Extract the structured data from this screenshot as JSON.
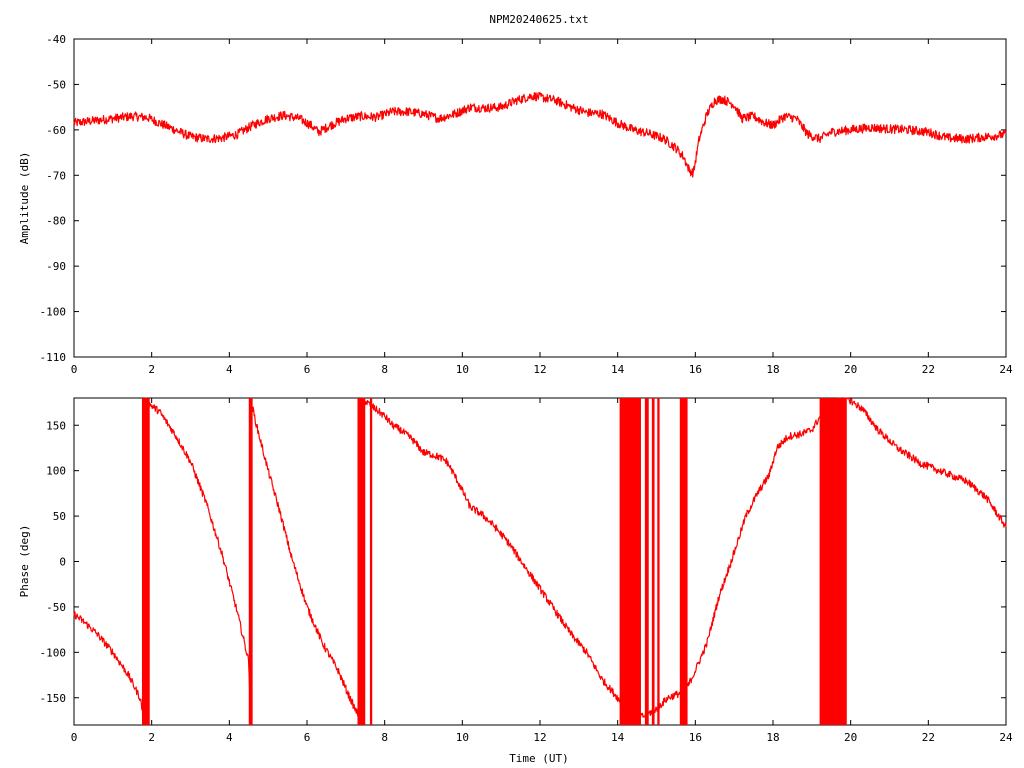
{
  "chart_data": [
    {
      "type": "line",
      "title": "NPM20240625.txt",
      "xlabel": "",
      "ylabel": "Amplitude (dB)",
      "xlim": [
        0,
        24
      ],
      "ylim": [
        -110,
        -40
      ],
      "xticks": [
        "0",
        "2",
        "4",
        "6",
        "8",
        "10",
        "12",
        "14",
        "16",
        "18",
        "20",
        "22",
        "24"
      ],
      "yticks": [
        "-40",
        "-50",
        "-60",
        "-70",
        "-80",
        "-90",
        "-100",
        "-110"
      ],
      "color": "#ff0000",
      "noise_dB": 1.0,
      "series": [
        {
          "x": [
            0,
            0.5,
            1,
            1.5,
            1.9,
            2.2,
            2.6,
            3,
            3.4,
            3.8,
            4.2,
            4.6,
            5,
            5.4,
            5.8,
            6.1,
            6.3,
            6.6,
            7,
            7.4,
            7.8,
            8.2,
            8.6,
            9,
            9.4,
            9.8,
            10.2,
            10.6,
            11,
            11.4,
            11.8,
            12,
            12.4,
            12.8,
            13.2,
            13.6,
            14,
            14.4,
            14.8,
            15.2,
            15.5,
            15.7,
            15.85,
            15.95,
            16.1,
            16.3,
            16.5,
            16.7,
            17,
            17.2,
            17.5,
            17.8,
            18,
            18.3,
            18.6,
            18.9,
            19.2,
            19.5,
            20,
            20.5,
            21,
            21.5,
            22,
            22.5,
            23,
            23.5,
            24
          ],
          "y": [
            -58.5,
            -58,
            -57.5,
            -57,
            -57.3,
            -58.5,
            -60,
            -61.5,
            -62,
            -61.8,
            -61,
            -59,
            -57.5,
            -56.8,
            -57.5,
            -59,
            -60.5,
            -59,
            -57.5,
            -57,
            -57.2,
            -56,
            -56,
            -56.5,
            -57.5,
            -56.5,
            -55,
            -55.2,
            -55,
            -53.5,
            -52.5,
            -52.8,
            -53.5,
            -55,
            -56.2,
            -56.5,
            -58.5,
            -60,
            -60.8,
            -62,
            -64,
            -66,
            -69,
            -69.5,
            -62,
            -56.5,
            -53.5,
            -53.2,
            -54.5,
            -57.5,
            -57,
            -58.5,
            -59,
            -57,
            -57.5,
            -61,
            -62,
            -60.5,
            -60,
            -59.5,
            -59.8,
            -60,
            -60.5,
            -61.8,
            -62,
            -61.5,
            -61
          ]
        }
      ]
    },
    {
      "type": "line",
      "title": "",
      "xlabel": "Time (UT)",
      "ylabel": "Phase (deg)",
      "xlim": [
        0,
        24
      ],
      "ylim": [
        -180,
        180
      ],
      "xticks": [
        "0",
        "2",
        "4",
        "6",
        "8",
        "10",
        "12",
        "14",
        "16",
        "18",
        "20",
        "22",
        "24"
      ],
      "yticks": [
        "150",
        "100",
        "50",
        "0",
        "-50",
        "-100",
        "-150"
      ],
      "color": "#ff0000",
      "noise_deg": 4,
      "series": [
        {
          "x": [
            0,
            0.3,
            0.6,
            1,
            1.4,
            1.7,
            1.8,
            1.8,
            2.2,
            2.6,
            3,
            3.4,
            3.8,
            4.2,
            4.5,
            4.55,
            4.55,
            4.7,
            5,
            5.3,
            5.6,
            6,
            6.4,
            6.8,
            7.1,
            7.3,
            7.45,
            7.45,
            7.7,
            8,
            8.2,
            8.4,
            8.7,
            9,
            9.2,
            9.4,
            9.6,
            9.8,
            10,
            10.2,
            10.5,
            10.8,
            11.2,
            11.6,
            12,
            12.4,
            12.8,
            13.2,
            13.6,
            14,
            14.2,
            14.4,
            14.7,
            15,
            15.3,
            15.6,
            15.8,
            16,
            16.3,
            16.6,
            17,
            17.3,
            17.6,
            17.9,
            18.1,
            18.4,
            18.7,
            19,
            19.3,
            19.6,
            19.9,
            20.3,
            20.7,
            21.2,
            21.8,
            22.4,
            23,
            23.5,
            24
          ],
          "y": [
            -58,
            -68,
            -80,
            -100,
            -125,
            -150,
            -172,
            178,
            165,
            140,
            110,
            65,
            10,
            -55,
            -110,
            -172,
            178,
            150,
            100,
            55,
            5,
            -50,
            -90,
            -120,
            -150,
            -168,
            -178,
            178,
            170,
            160,
            150,
            145,
            135,
            120,
            118,
            115,
            110,
            95,
            78,
            60,
            52,
            40,
            20,
            -5,
            -30,
            -55,
            -80,
            -100,
            -130,
            -150,
            -165,
            -172,
            -170,
            -162,
            -150,
            -145,
            -138,
            -120,
            -90,
            -40,
            10,
            50,
            75,
            95,
            125,
            138,
            140,
            145,
            165,
            175,
            180,
            168,
            145,
            125,
            108,
            98,
            88,
            70,
            38
          ]
        }
      ],
      "wrap_bands": [
        {
          "from": 1.75,
          "to": 1.95
        },
        {
          "from": 4.5,
          "to": 4.6
        },
        {
          "from": 7.3,
          "to": 7.5
        },
        {
          "from": 7.62,
          "to": 7.68
        },
        {
          "from": 14.05,
          "to": 14.6
        },
        {
          "from": 14.7,
          "to": 14.8
        },
        {
          "from": 14.88,
          "to": 14.95
        },
        {
          "from": 15.02,
          "to": 15.08
        },
        {
          "from": 15.6,
          "to": 15.8
        },
        {
          "from": 19.2,
          "to": 19.9
        }
      ]
    }
  ]
}
